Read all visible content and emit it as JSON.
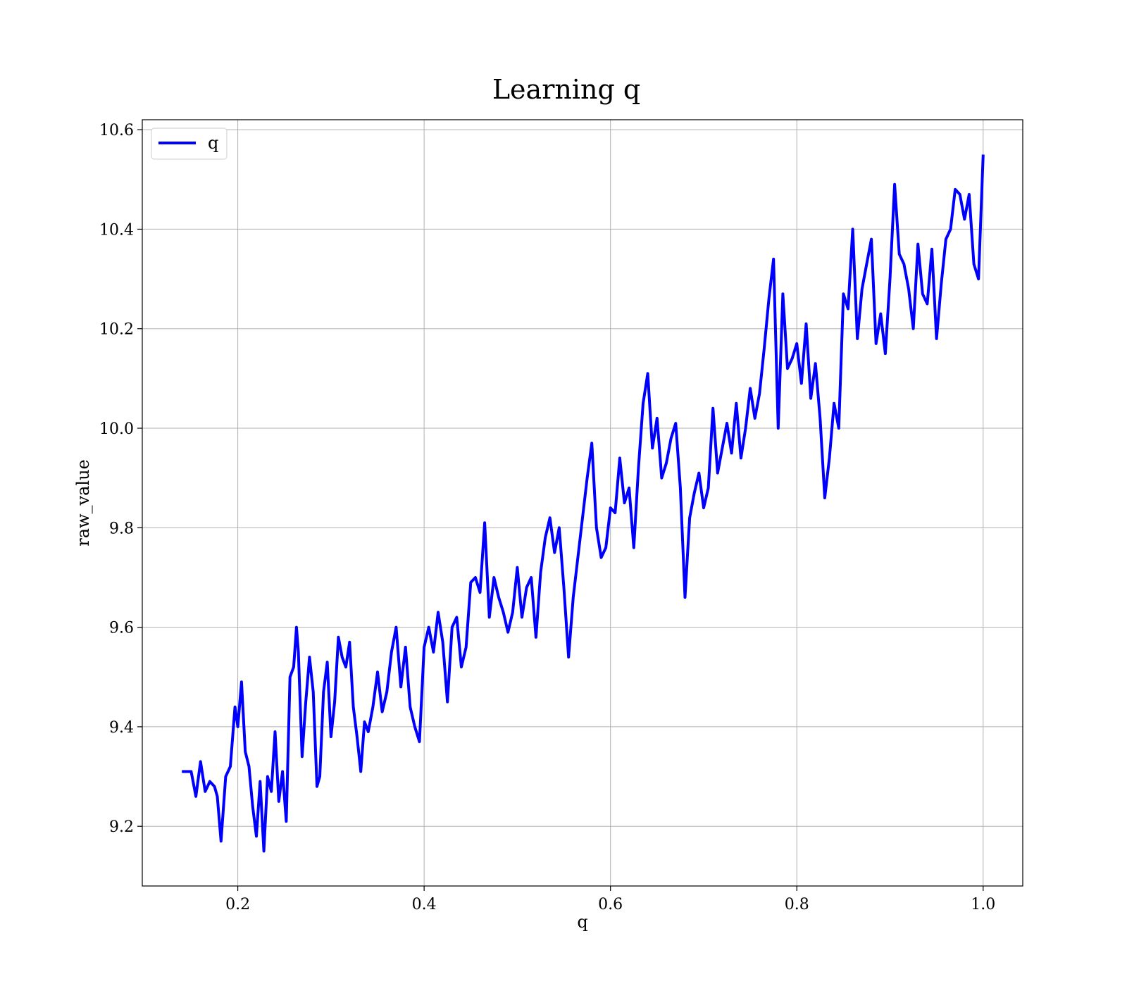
{
  "chart_data": {
    "type": "line",
    "title": "Learning q",
    "xlabel": "q",
    "ylabel": "raw_value",
    "xlim": [
      0.0975,
      1.0425
    ],
    "ylim": [
      9.08,
      10.62
    ],
    "xticks": [
      0.2,
      0.4,
      0.6,
      0.8,
      1.0
    ],
    "xtick_labels": [
      "0.2",
      "0.4",
      "0.6",
      "0.8",
      "1.0"
    ],
    "yticks": [
      9.2,
      9.4,
      9.6,
      9.8,
      10.0,
      10.2,
      10.4,
      10.6
    ],
    "ytick_labels": [
      "9.2",
      "9.4",
      "9.6",
      "9.8",
      "10.0",
      "10.2",
      "10.4",
      "10.6"
    ],
    "grid": true,
    "legend_position": "top-left",
    "series": [
      {
        "name": "q",
        "color": "#0000ff",
        "x": [
          0.14,
          0.15,
          0.155,
          0.16,
          0.165,
          0.17,
          0.175,
          0.178,
          0.182,
          0.187,
          0.192,
          0.197,
          0.2,
          0.204,
          0.208,
          0.212,
          0.216,
          0.22,
          0.224,
          0.228,
          0.232,
          0.236,
          0.24,
          0.244,
          0.248,
          0.252,
          0.256,
          0.26,
          0.263,
          0.265,
          0.269,
          0.273,
          0.277,
          0.281,
          0.285,
          0.288,
          0.292,
          0.296,
          0.3,
          0.304,
          0.308,
          0.312,
          0.316,
          0.32,
          0.324,
          0.328,
          0.332,
          0.336,
          0.34,
          0.345,
          0.35,
          0.355,
          0.36,
          0.365,
          0.37,
          0.375,
          0.38,
          0.385,
          0.39,
          0.395,
          0.4,
          0.405,
          0.41,
          0.415,
          0.42,
          0.425,
          0.43,
          0.435,
          0.44,
          0.445,
          0.45,
          0.455,
          0.46,
          0.465,
          0.47,
          0.475,
          0.48,
          0.485,
          0.49,
          0.495,
          0.5,
          0.505,
          0.51,
          0.515,
          0.52,
          0.525,
          0.53,
          0.535,
          0.54,
          0.545,
          0.55,
          0.555,
          0.56,
          0.565,
          0.57,
          0.575,
          0.58,
          0.585,
          0.59,
          0.595,
          0.6,
          0.605,
          0.61,
          0.615,
          0.62,
          0.625,
          0.63,
          0.635,
          0.64,
          0.645,
          0.65,
          0.655,
          0.66,
          0.665,
          0.67,
          0.675,
          0.68,
          0.685,
          0.69,
          0.695,
          0.7,
          0.705,
          0.71,
          0.715,
          0.72,
          0.725,
          0.73,
          0.735,
          0.74,
          0.745,
          0.75,
          0.755,
          0.76,
          0.765,
          0.77,
          0.775,
          0.78,
          0.785,
          0.79,
          0.795,
          0.8,
          0.805,
          0.81,
          0.815,
          0.82,
          0.825,
          0.83,
          0.835,
          0.84,
          0.845,
          0.85,
          0.855,
          0.86,
          0.865,
          0.87,
          0.875,
          0.88,
          0.885,
          0.89,
          0.895,
          0.9,
          0.905,
          0.91,
          0.915,
          0.92,
          0.925,
          0.93,
          0.935,
          0.94,
          0.945,
          0.95,
          0.955,
          0.96,
          0.965,
          0.97,
          0.975,
          0.98,
          0.985,
          0.99,
          0.995,
          1.0
        ],
        "y": [
          9.31,
          9.31,
          9.26,
          9.33,
          9.27,
          9.29,
          9.28,
          9.26,
          9.17,
          9.3,
          9.32,
          9.44,
          9.4,
          9.49,
          9.35,
          9.32,
          9.24,
          9.18,
          9.29,
          9.15,
          9.3,
          9.27,
          9.39,
          9.25,
          9.31,
          9.21,
          9.5,
          9.52,
          9.6,
          9.55,
          9.34,
          9.45,
          9.54,
          9.47,
          9.28,
          9.3,
          9.47,
          9.53,
          9.38,
          9.45,
          9.58,
          9.54,
          9.52,
          9.57,
          9.44,
          9.38,
          9.31,
          9.41,
          9.39,
          9.44,
          9.51,
          9.43,
          9.47,
          9.55,
          9.6,
          9.48,
          9.56,
          9.44,
          9.4,
          9.37,
          9.56,
          9.6,
          9.55,
          9.63,
          9.57,
          9.45,
          9.6,
          9.62,
          9.52,
          9.56,
          9.69,
          9.7,
          9.67,
          9.81,
          9.62,
          9.7,
          9.66,
          9.63,
          9.59,
          9.63,
          9.72,
          9.62,
          9.68,
          9.7,
          9.58,
          9.71,
          9.78,
          9.82,
          9.75,
          9.8,
          9.68,
          9.54,
          9.66,
          9.74,
          9.82,
          9.9,
          9.97,
          9.8,
          9.74,
          9.76,
          9.84,
          9.83,
          9.94,
          9.85,
          9.88,
          9.76,
          9.92,
          10.05,
          10.11,
          9.96,
          10.02,
          9.9,
          9.93,
          9.98,
          10.01,
          9.88,
          9.66,
          9.82,
          9.87,
          9.91,
          9.84,
          9.88,
          10.04,
          9.91,
          9.96,
          10.01,
          9.95,
          10.05,
          9.94,
          10.0,
          10.08,
          10.02,
          10.07,
          10.16,
          10.26,
          10.34,
          10.0,
          10.27,
          10.12,
          10.14,
          10.17,
          10.09,
          10.21,
          10.06,
          10.13,
          10.02,
          9.86,
          9.94,
          10.05,
          10.0,
          10.27,
          10.24,
          10.4,
          10.18,
          10.28,
          10.33,
          10.38,
          10.17,
          10.23,
          10.15,
          10.3,
          10.49,
          10.35,
          10.33,
          10.28,
          10.2,
          10.37,
          10.27,
          10.25,
          10.36,
          10.18,
          10.29,
          10.38,
          10.4,
          10.48,
          10.47,
          10.42,
          10.47,
          10.33,
          10.3,
          10.55
        ]
      }
    ]
  }
}
